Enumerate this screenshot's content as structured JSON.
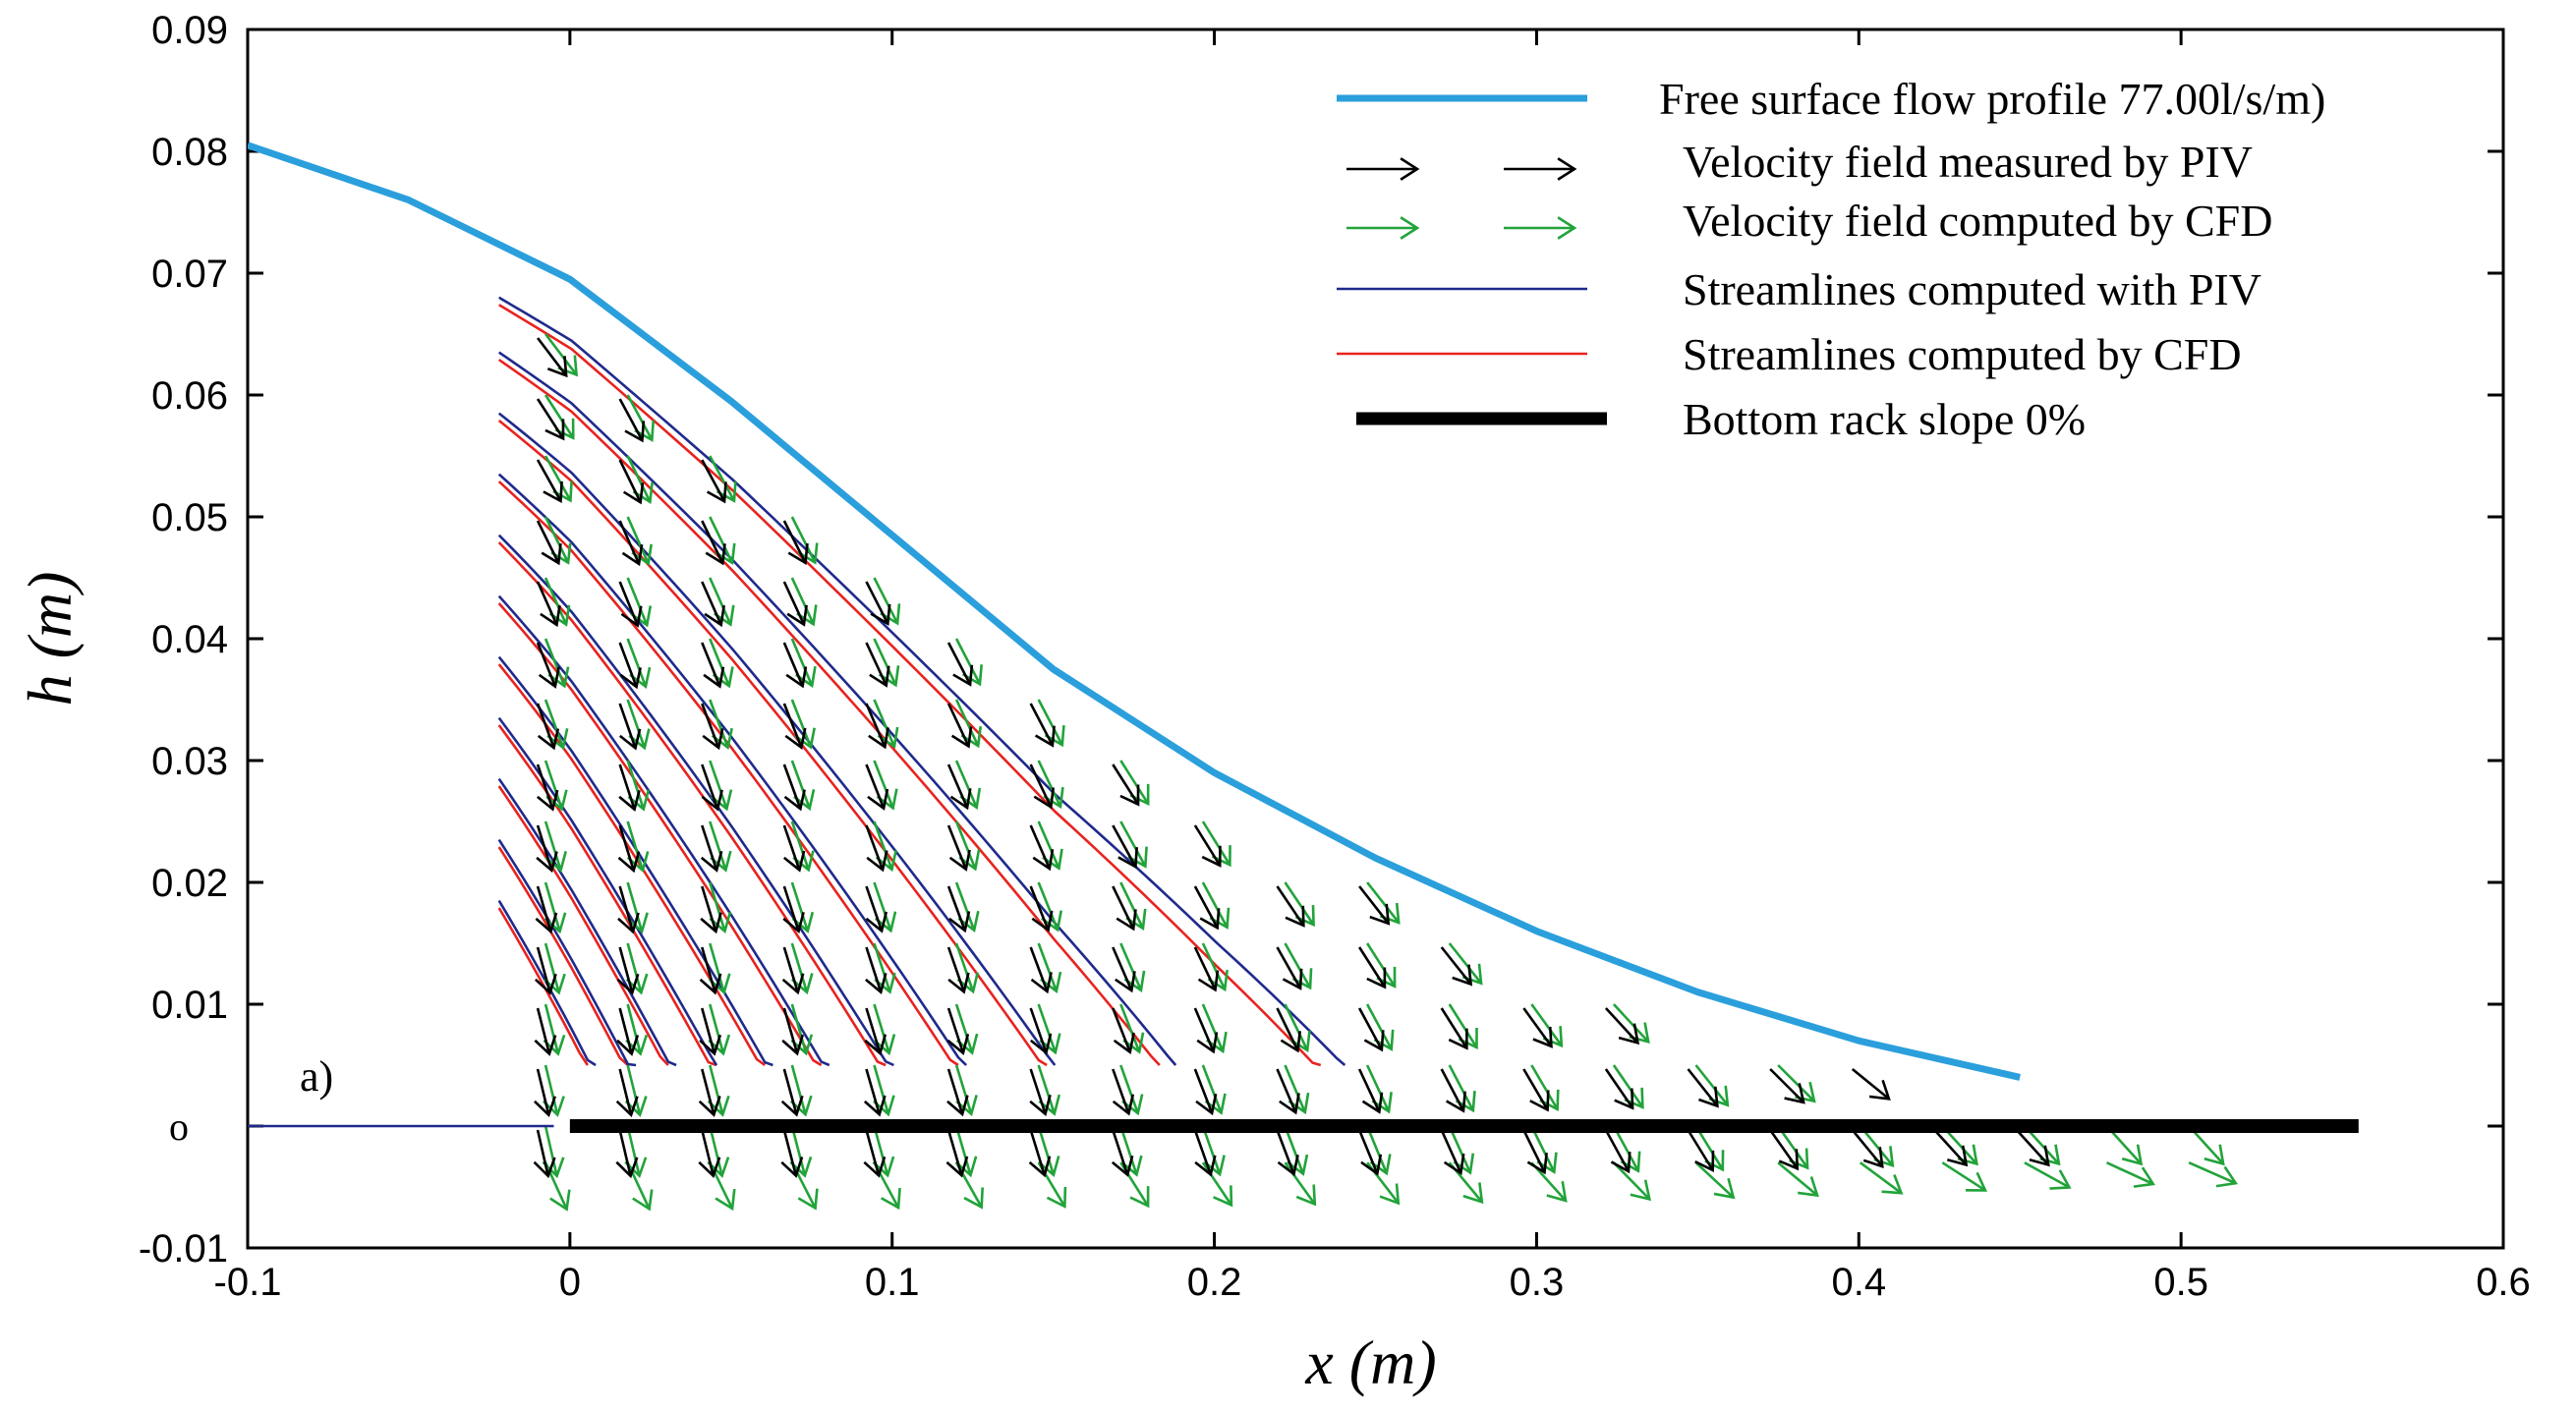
{
  "chart_data": {
    "type": "line",
    "title": "",
    "xlabel": "x (m)",
    "ylabel": "h (m)",
    "xlim": [
      -0.1,
      0.6
    ],
    "ylim": [
      -0.01,
      0.09
    ],
    "grid": false,
    "x_ticks": [
      -0.1,
      0,
      0.1,
      0.2,
      0.3,
      0.4,
      0.5,
      0.6
    ],
    "x_tick_labels": [
      "-0.1",
      "0",
      "0.1",
      "0.2",
      "0.3",
      "0.4",
      "0.5",
      "0.6"
    ],
    "y_ticks": [
      -0.01,
      0,
      0.01,
      0.02,
      0.03,
      0.04,
      0.05,
      0.06,
      0.07,
      0.08,
      0.09
    ],
    "y_tick_labels": [
      "-0.01",
      "o",
      "0.01",
      "0.02",
      "0.03",
      "0.04",
      "0.05",
      "0.06",
      "0.07",
      "0.08",
      "0.09"
    ],
    "annotation": "a)",
    "legend_position": "top-right",
    "legend": [
      {
        "label": "Free surface flow profile 77.00l/s/m)",
        "style": "thick-line",
        "color": "#2b9fdc"
      },
      {
        "label": "Velocity field measured by PIV",
        "style": "arrows",
        "color": "#000000"
      },
      {
        "label": "Velocity field computed by CFD",
        "style": "arrows",
        "color": "#22a33a"
      },
      {
        "label": "Streamlines computed with PIV",
        "style": "thin-line",
        "color": "#1f2a8c"
      },
      {
        "label": "Streamlines computed by CFD",
        "style": "thin-line",
        "color": "#e8231f"
      },
      {
        "label": "Bottom rack slope 0%",
        "style": "very-thick-line",
        "color": "#000000"
      }
    ],
    "series": [
      {
        "name": "Free surface flow profile 77.00l/s/m)",
        "color": "#2b9fdc",
        "x": [
          -0.1,
          -0.05,
          0.0,
          0.05,
          0.1,
          0.15,
          0.2,
          0.25,
          0.3,
          0.35,
          0.4,
          0.45
        ],
        "y": [
          0.0805,
          0.076,
          0.0695,
          0.0595,
          0.0485,
          0.0375,
          0.029,
          0.022,
          0.016,
          0.011,
          0.007,
          0.004
        ]
      },
      {
        "name": "Bottom rack slope 0%",
        "color": "#000000",
        "x": [
          0.0,
          0.5551
        ],
        "y": [
          0.0,
          0.0
        ]
      },
      {
        "name": "Upstream bottom line",
        "color": "#1f2a8c",
        "x": [
          -0.1,
          -0.005
        ],
        "y": [
          0.0,
          0.0
        ]
      }
    ],
    "streamline_start_heights": [
      0.068,
      0.0635,
      0.0585,
      0.0535,
      0.0485,
      0.0435,
      0.0385,
      0.0335,
      0.0285,
      0.0235,
      0.0185
    ],
    "piv_grid": {
      "x_start": -0.01,
      "x_step": 0.0255,
      "x_count": 19,
      "y_levels": [
        0.0,
        0.005,
        0.01,
        0.015,
        0.02,
        0.025,
        0.03,
        0.035,
        0.04,
        0.045,
        0.05,
        0.055,
        0.06,
        0.065
      ]
    },
    "cfd_grid": {
      "x_start": -0.01,
      "x_step": 0.0255,
      "x_count": 21,
      "y_levels": [
        -0.003,
        0.0,
        0.005,
        0.01,
        0.015,
        0.02,
        0.025,
        0.03,
        0.035,
        0.04,
        0.045,
        0.05,
        0.055,
        0.06,
        0.065
      ]
    }
  }
}
